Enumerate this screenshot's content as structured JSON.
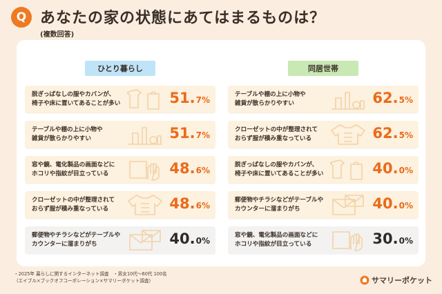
{
  "header": {
    "badge": "Q",
    "title": "あなたの家の状態にあてはまるものは？",
    "subtitle": "(複数回答)"
  },
  "chart_data": [
    {
      "type": "bar",
      "title": "ひとり暮らし",
      "unit": "%",
      "categories": [
        "脱ぎっぱなしの服やカバンが、\n椅子や床に置いてあることが多い",
        "テーブルや棚の上に小物や\n雑貨が散らかりやすい",
        "窓や鏡、電化製品の画面などに\nホコリや指紋が目立っている",
        "クローゼットの中が整理されて\nおらず服が積み重なっている",
        "郵便物やチラシなどがテーブルや\nカウンターに溜まりがち"
      ],
      "values": [
        51.7,
        51.7,
        48.6,
        48.6,
        40.0
      ],
      "value_labels": [
        {
          "num": "51.",
          "unit": "7%"
        },
        {
          "num": "51.",
          "unit": "7%"
        },
        {
          "num": "48.",
          "unit": "6%"
        },
        {
          "num": "48.",
          "unit": "6%"
        },
        {
          "num": "40.",
          "unit": "0%"
        }
      ],
      "icons": [
        "hanging-clothes-icon",
        "shelf-items-icon",
        "wiping-hand-icon",
        "sweater-icon",
        "envelope-icon"
      ],
      "highlight": [
        true,
        true,
        true,
        true,
        false
      ]
    },
    {
      "type": "bar",
      "title": "同居世帯",
      "unit": "%",
      "categories": [
        "テーブルや棚の上に小物や\n雑貨が散らかりやすい",
        "クローゼットの中が整理されて\nおらず服が積み重なっている",
        "脱ぎっぱなしの服やカバンが、\n椅子や床に置いてあることが多い",
        "郵便物やチラシなどがテーブルや\nカウンターに溜まりがち",
        "窓や鏡、電化製品の画面などに\nホコリや指紋が目立っている"
      ],
      "values": [
        62.5,
        62.5,
        40.0,
        40.0,
        30.0
      ],
      "value_labels": [
        {
          "num": "62.",
          "unit": "5%"
        },
        {
          "num": "62.",
          "unit": "5%"
        },
        {
          "num": "40.",
          "unit": "0%"
        },
        {
          "num": "40.",
          "unit": "0%"
        },
        {
          "num": "30.",
          "unit": "0%"
        }
      ],
      "icons": [
        "shelf-items-icon",
        "sweater-icon",
        "hanging-clothes-icon",
        "envelope-icon",
        "wiping-hand-icon"
      ],
      "highlight": [
        true,
        true,
        true,
        true,
        false
      ]
    }
  ],
  "colors": {
    "accent": "#ee7a22",
    "value_highlight": "#ea6b1a",
    "value_normal": "#2f2a27",
    "row_highlight": "#fdf1df",
    "row_normal": "#f3f2f0",
    "tag_left": "#bfe3f7",
    "tag_right": "#c8e8b4",
    "icon_stroke": "#f2d2a6"
  },
  "footer": {
    "note": "・2025年 暮らしに関するインターネット調査　・男女10代〜60代 100名\n（エイブル×ブックオフコーポレーション×サマリーポケット調査）",
    "brand": "サマリーポケット"
  }
}
